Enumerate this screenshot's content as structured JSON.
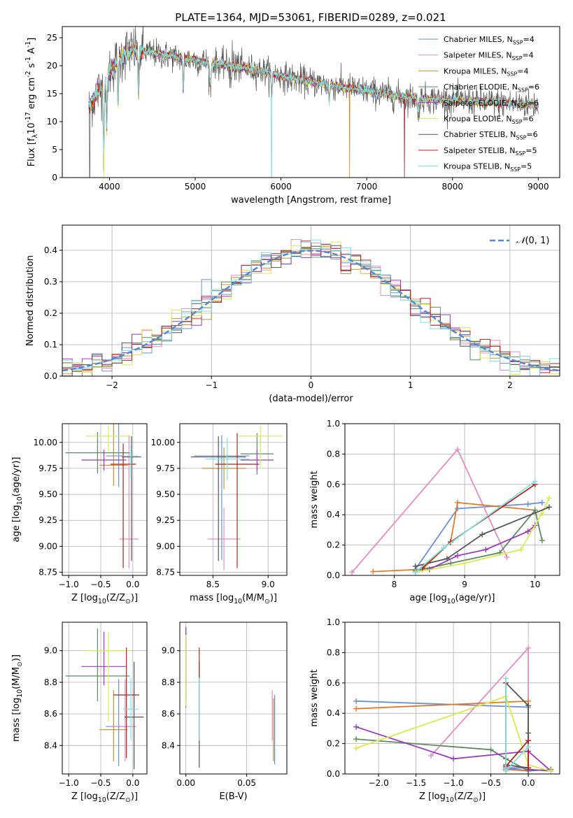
{
  "title": "PLATE=1364, MJD=53061, FIBERID=0289, z=0.021",
  "series": [
    {
      "name": "Chabrier MILES, N$_{SSP}$=4",
      "color": "#6b8fd8"
    },
    {
      "name": "Salpeter MILES, N$_{SSP}$=4",
      "color": "#e58dbd"
    },
    {
      "name": "Kroupa MILES, N$_{SSP}$=4",
      "color": "#c8902a"
    },
    {
      "name": "Chabrier ELODIE, N$_{SSP}$=6",
      "color": "#5e8a62"
    },
    {
      "name": "Salpeter ELODIE, N$_{SSP}$=6",
      "color": "#9a3bbd"
    },
    {
      "name": "Kroupa ELODIE, N$_{SSP}$=6",
      "color": "#d6ec4a"
    },
    {
      "name": "Chabrier STELIB, N$_{SSP}$=6",
      "color": "#555555"
    },
    {
      "name": "Salpeter STELIB, N$_{SSP}$=5",
      "color": "#b22222"
    },
    {
      "name": "Kroupa STELIB, N$_{SSP}$=5",
      "color": "#7fe0e0"
    }
  ],
  "extra_colors": {
    "orange": "#e07b2a"
  },
  "chart_data": [
    {
      "id": "spectrum",
      "type": "line",
      "xlabel": "wavelength [Angstrom, rest frame]",
      "ylabel": "Flux [f$_{\\lambda}$10$^{-17}$ erg cm$^{-2}$ s$^{-1}$ A$^{-1}$]",
      "xlim": [
        3450,
        9250
      ],
      "ylim": [
        0,
        27
      ],
      "xticks": [
        4000,
        5000,
        6000,
        7000,
        8000,
        9000
      ],
      "yticks": [
        0,
        5,
        10,
        15,
        20,
        25
      ],
      "continuum": {
        "x": [
          3760,
          3900,
          4000,
          4100,
          4200,
          4300,
          4400,
          4600,
          4800,
          5000,
          5200,
          5400,
          5600,
          5800,
          6000,
          6200,
          6400,
          6600,
          6800,
          7000,
          7200,
          7400,
          7600,
          7800,
          8000,
          8200,
          8400,
          8600,
          8800,
          9000
        ],
        "y": [
          13,
          16,
          19,
          21,
          22.5,
          22.8,
          22.5,
          22,
          21.5,
          21,
          20.5,
          20,
          19.5,
          19,
          18.2,
          17.5,
          17,
          16.5,
          16,
          15.5,
          15,
          14.5,
          14.2,
          14,
          13.8,
          13.6,
          13.5,
          13.3,
          13.2,
          13
        ]
      },
      "drops": [
        {
          "x": 3770,
          "series": "Chabrier STELIB, N$_{SSP}$=6"
        },
        {
          "x": 3935,
          "series": "Kroupa ELODIE, N$_{SSP}$=6"
        },
        {
          "x": 5890,
          "series": "Kroupa STELIB, N$_{SSP}$=5"
        },
        {
          "x": 6800,
          "series": "Kroupa MILES, N$_{SSP}$=4"
        },
        {
          "x": 7440,
          "series": "Salpeter STELIB, N$_{SSP}$=5"
        }
      ]
    },
    {
      "id": "residuals",
      "type": "histogram",
      "xlabel": "(data-model)/error",
      "ylabel": "Normed distribution",
      "xlim": [
        -2.5,
        2.5
      ],
      "ylim": [
        0,
        0.48
      ],
      "xticks": [
        -2,
        -1,
        0,
        1,
        2
      ],
      "yticks": [
        0.0,
        0.1,
        0.2,
        0.3,
        0.4
      ],
      "bin_width": 0.1,
      "reference": "$\\mathcal{N}(0, 1)$"
    },
    {
      "id": "age-vs-Z",
      "type": "scatter",
      "xlabel": "Z [log$_{10}$(Z/Z$_{\\odot}$)]",
      "ylabel": "age  [log$_{10}$(age/yr)]",
      "xlim": [
        -1.1,
        0.22
      ],
      "ylim": [
        8.72,
        10.18
      ],
      "xticks": [
        -1.0,
        -0.5,
        0.0
      ],
      "yticks": [
        8.75,
        9.0,
        9.25,
        9.5,
        9.75,
        10.0
      ],
      "points": [
        {
          "series": "Chabrier MILES, N$_{SSP}$=4",
          "x": -0.22,
          "y": 9.87,
          "xerr": 0.2,
          "yerr": [
            0.3,
            0.95
          ]
        },
        {
          "series": "Salpeter MILES, N$_{SSP}$=4",
          "x": -0.06,
          "y": 9.07,
          "xerr": 0.15,
          "yerr": [
            0.28,
            1.0
          ]
        },
        {
          "series": "Kroupa MILES, N$_{SSP}$=4",
          "x": -0.3,
          "y": 9.78,
          "xerr": 0.22,
          "yerr": [
            0.2,
            1.0
          ]
        },
        {
          "series": "Chabrier ELODIE, N$_{SSP}$=6",
          "x": -0.55,
          "y": 9.9,
          "xerr": 0.5,
          "yerr": [
            0.2,
            0.2
          ]
        },
        {
          "series": "Salpeter ELODIE, N$_{SSP}$=6",
          "x": -0.45,
          "y": 9.83,
          "xerr": 0.35,
          "yerr": [
            0.1,
            0.1
          ]
        },
        {
          "series": "Kroupa ELODIE, N$_{SSP}$=6",
          "x": -0.38,
          "y": 10.06,
          "xerr": 0.35,
          "yerr": [
            0.15,
            0.1
          ]
        },
        {
          "series": "Chabrier STELIB, N$_{SSP}$=6",
          "x": -0.02,
          "y": 9.86,
          "xerr": 0.15,
          "yerr": [
            1.0,
            0.2
          ]
        },
        {
          "series": "Salpeter STELIB, N$_{SSP}$=5",
          "x": -0.15,
          "y": 9.79,
          "xerr": 0.2,
          "yerr": [
            1.0,
            0.2
          ]
        },
        {
          "series": "Kroupa STELIB, N$_{SSP}$=5",
          "x": -0.03,
          "y": 9.87,
          "xerr": 0.12,
          "yerr": [
            0.2,
            0.1
          ]
        }
      ]
    },
    {
      "id": "age-vs-mass",
      "type": "scatter",
      "xlabel": "mass [log$_{10}$(M/M$_{\\odot}$)]",
      "ylabel": "",
      "xlim": [
        8.2,
        9.17
      ],
      "ylim": [
        8.72,
        10.18
      ],
      "xticks": [
        8.5,
        9.0
      ],
      "yticks": [
        8.75,
        9.0,
        9.25,
        9.5,
        9.75,
        10.0
      ],
      "points": [
        {
          "series": "Chabrier MILES, N$_{SSP}$=4",
          "x": 8.58,
          "y": 9.87,
          "xerr": 0.25,
          "yerr": [
            1.0,
            0.2
          ]
        },
        {
          "series": "Salpeter MILES, N$_{SSP}$=4",
          "x": 8.6,
          "y": 9.07,
          "xerr": 0.15,
          "yerr": [
            0.3,
            0.3
          ]
        },
        {
          "series": "Kroupa MILES, N$_{SSP}$=4",
          "x": 8.6,
          "y": 9.75,
          "xerr": 0.2,
          "yerr": [
            0.2,
            0.2
          ]
        },
        {
          "series": "Chabrier ELODIE, N$_{SSP}$=6",
          "x": 8.9,
          "y": 9.89,
          "xerr": 0.15,
          "yerr": [
            0.2,
            0.2
          ]
        },
        {
          "series": "Salpeter ELODIE, N$_{SSP}$=6",
          "x": 8.9,
          "y": 9.83,
          "xerr": 0.15,
          "yerr": [
            0.1,
            0.1
          ]
        },
        {
          "series": "Kroupa ELODIE, N$_{SSP}$=6",
          "x": 8.93,
          "y": 10.06,
          "xerr": 0.2,
          "yerr": [
            0.3,
            0.1
          ]
        },
        {
          "series": "Chabrier STELIB, N$_{SSP}$=6",
          "x": 8.55,
          "y": 9.86,
          "xerr": 0.25,
          "yerr": [
            1.0,
            0.2
          ]
        },
        {
          "series": "Salpeter STELIB, N$_{SSP}$=5",
          "x": 8.72,
          "y": 9.79,
          "xerr": 0.2,
          "yerr": [
            1.0,
            0.3
          ]
        },
        {
          "series": "Kroupa STELIB, N$_{SSP}$=5",
          "x": 8.63,
          "y": 9.84,
          "xerr": 0.2,
          "yerr": [
            0.2,
            0.2
          ]
        }
      ]
    },
    {
      "id": "weight-vs-age",
      "type": "line",
      "xlabel": "age  [log$_{10}$(age/yr)]",
      "ylabel": "mass weight",
      "xlim": [
        7.3,
        10.35
      ],
      "ylim": [
        0,
        1.0
      ],
      "xticks": [
        8,
        9,
        10
      ],
      "yticks": [
        0.0,
        0.2,
        0.4,
        0.6,
        0.8,
        1.0
      ],
      "lines": [
        {
          "series": "Chabrier MILES, N$_{SSP}$=4",
          "x": [
            8.3,
            8.9,
            9.9,
            10.1
          ],
          "y": [
            0.04,
            0.44,
            0.47,
            0.48
          ]
        },
        {
          "series": "Salpeter MILES, N$_{SSP}$=4",
          "x": [
            7.4,
            8.9,
            9.6
          ],
          "y": [
            0.02,
            0.83,
            0.12
          ]
        },
        {
          "series": "orange",
          "x": [
            7.7,
            8.4,
            8.8,
            8.9,
            10.0
          ],
          "y": [
            0.025,
            0.04,
            0.22,
            0.48,
            0.43
          ]
        },
        {
          "series": "Chabrier ELODIE, N$_{SSP}$=6",
          "x": [
            8.3,
            8.8,
            9.5,
            10.0,
            10.1
          ],
          "y": [
            0.03,
            0.08,
            0.15,
            0.43,
            0.23
          ]
        },
        {
          "series": "Salpeter ELODIE, N$_{SSP}$=6",
          "x": [
            8.5,
            8.9,
            9.3,
            9.9,
            10.0
          ],
          "y": [
            0.04,
            0.13,
            0.17,
            0.29,
            0.33
          ]
        },
        {
          "series": "Kroupa ELODIE, N$_{SSP}$=6",
          "x": [
            8.3,
            9.0,
            9.8,
            10.1,
            10.2
          ],
          "y": [
            0.02,
            0.08,
            0.17,
            0.41,
            0.51
          ]
        },
        {
          "series": "Chabrier STELIB, N$_{SSP}$=6",
          "x": [
            8.3,
            8.75,
            9.25,
            10.2
          ],
          "y": [
            0.06,
            0.11,
            0.27,
            0.45
          ]
        },
        {
          "series": "Salpeter STELIB, N$_{SSP}$=5",
          "x": [
            8.4,
            8.8,
            10.0
          ],
          "y": [
            0.05,
            0.22,
            0.6
          ]
        },
        {
          "series": "Kroupa STELIB, N$_{SSP}$=5",
          "x": [
            8.3,
            8.7,
            10.0
          ],
          "y": [
            0.02,
            0.18,
            0.62
          ]
        }
      ]
    },
    {
      "id": "mass-vs-Z",
      "type": "scatter",
      "xlabel": "Z [log$_{10}$(Z/Z$_{\\odot}$)]",
      "ylabel": "mass [log$_{10}$(M/M$_{\\odot}$)]",
      "xlim": [
        -1.1,
        0.22
      ],
      "ylim": [
        8.22,
        9.18
      ],
      "xticks": [
        -1.0,
        -0.5,
        0.0
      ],
      "yticks": [
        8.4,
        8.6,
        8.8,
        9.0
      ],
      "points": [
        {
          "series": "Chabrier MILES, N$_{SSP}$=4",
          "x": -0.22,
          "y": 8.52,
          "xerr": 0.2,
          "yerr": [
            0.25,
            0.3
          ]
        },
        {
          "series": "Salpeter MILES, N$_{SSP}$=4",
          "x": -0.12,
          "y": 8.52,
          "xerr": 0.18,
          "yerr": [
            0.22,
            0.3
          ]
        },
        {
          "series": "Kroupa MILES, N$_{SSP}$=4",
          "x": -0.3,
          "y": 8.5,
          "xerr": 0.22,
          "yerr": [
            0.2,
            0.25
          ]
        },
        {
          "series": "Chabrier ELODIE, N$_{SSP}$=6",
          "x": -0.55,
          "y": 8.84,
          "xerr": 0.5,
          "yerr": [
            0.16,
            0.3
          ]
        },
        {
          "series": "Salpeter ELODIE, N$_{SSP}$=6",
          "x": -0.45,
          "y": 8.9,
          "xerr": 0.35,
          "yerr": [
            0.12,
            0.22
          ]
        },
        {
          "series": "Kroupa ELODIE, N$_{SSP}$=6",
          "x": -0.38,
          "y": 9.0,
          "xerr": 0.35,
          "yerr": [
            0.45,
            0.12
          ]
        },
        {
          "series": "Chabrier STELIB, N$_{SSP}$=6",
          "x": 0.02,
          "y": 8.58,
          "xerr": 0.15,
          "yerr": [
            0.33,
            0.35
          ]
        },
        {
          "series": "Salpeter STELIB, N$_{SSP}$=5",
          "x": -0.1,
          "y": 8.72,
          "xerr": 0.2,
          "yerr": [
            0.4,
            0.3
          ]
        },
        {
          "series": "Kroupa STELIB, N$_{SSP}$=5",
          "x": -0.03,
          "y": 8.63,
          "xerr": 0.12,
          "yerr": [
            0.2,
            0.2
          ]
        }
      ]
    },
    {
      "id": "mass-vs-ebv",
      "type": "scatter",
      "xlabel": "E(B-V)",
      "ylabel": "",
      "xlim": [
        -0.005,
        0.083
      ],
      "ylim": [
        8.22,
        9.18
      ],
      "xticks": [
        0.0,
        0.05
      ],
      "yticks": [
        8.4,
        8.6,
        8.8,
        9.0
      ],
      "points": [
        {
          "series": "Chabrier MILES, N$_{SSP}$=4",
          "x": 0.073,
          "y": 8.5,
          "xerr": 0,
          "yerr": [
            0.22,
            0.22
          ]
        },
        {
          "series": "Salpeter MILES, N$_{SSP}$=4",
          "x": 0.071,
          "y": 8.6,
          "xerr": 0,
          "yerr": [
            0.17,
            0.15
          ]
        },
        {
          "series": "Kroupa MILES, N$_{SSP}$=4",
          "x": 0.072,
          "y": 8.5,
          "xerr": 0,
          "yerr": [
            0.2,
            0.2
          ]
        },
        {
          "series": "Chabrier ELODIE, N$_{SSP}$=6",
          "x": 0.0,
          "y": 8.84,
          "xerr": 0,
          "yerr": [
            0.2,
            0.3
          ]
        },
        {
          "series": "Salpeter ELODIE, N$_{SSP}$=6",
          "x": 0.0,
          "y": 8.9,
          "xerr": 0,
          "yerr": [
            0.2,
            0.25
          ]
        },
        {
          "series": "Kroupa ELODIE, N$_{SSP}$=6",
          "x": 0.0,
          "y": 8.8,
          "xerr": 0,
          "yerr": [
            0.15,
            0.3
          ]
        },
        {
          "series": "Chabrier STELIB, N$_{SSP}$=6",
          "x": 0.011,
          "y": 8.58,
          "xerr": 0,
          "yerr": [
            0.32,
            0.35
          ]
        },
        {
          "series": "Salpeter STELIB, N$_{SSP}$=5",
          "x": 0.011,
          "y": 8.72,
          "xerr": 0,
          "yerr": [
            0.3,
            0.3
          ]
        },
        {
          "series": "Kroupa STELIB, N$_{SSP}$=5",
          "x": 0.011,
          "y": 8.63,
          "xerr": 0,
          "yerr": [
            0.2,
            0.2
          ]
        }
      ]
    },
    {
      "id": "weight-vs-Z",
      "type": "line",
      "xlabel": "Z [log$_{10}$(Z/Z$_{\\odot}$)]",
      "ylabel": "mass weight",
      "xlim": [
        -2.45,
        0.42
      ],
      "ylim": [
        0,
        1.0
      ],
      "xticks": [
        -2.0,
        -1.5,
        -1.0,
        -0.5,
        0.0
      ],
      "yticks": [
        0.0,
        0.2,
        0.4,
        0.6,
        0.8,
        1.0
      ],
      "lines": [
        {
          "series": "Chabrier MILES, N$_{SSP}$=4",
          "x": [
            -2.3,
            0.0,
            0.0,
            -0.3,
            0.0
          ],
          "y": [
            0.48,
            0.44,
            0.04,
            0.04,
            0.02
          ]
        },
        {
          "series": "Salpeter MILES, N$_{SSP}$=4",
          "x": [
            -1.3,
            0.0,
            0.0,
            0.0
          ],
          "y": [
            0.12,
            0.83,
            0.02,
            0.04
          ]
        },
        {
          "series": "orange",
          "x": [
            -2.3,
            0.0,
            0.0,
            -0.3,
            0.0
          ],
          "y": [
            0.43,
            0.48,
            0.02,
            0.03,
            0.02
          ]
        },
        {
          "series": "Chabrier ELODIE, N$_{SSP}$=6",
          "x": [
            -2.3,
            -0.5,
            -0.3,
            0.0,
            0.3
          ],
          "y": [
            0.23,
            0.16,
            0.1,
            0.02,
            0.03
          ]
        },
        {
          "series": "Salpeter ELODIE, N$_{SSP}$=6",
          "x": [
            -2.3,
            -1.0,
            0.0,
            0.3,
            0.0
          ],
          "y": [
            0.31,
            0.1,
            0.15,
            0.02,
            0.03
          ]
        },
        {
          "series": "Kroupa ELODIE, N$_{SSP}$=6",
          "x": [
            -2.3,
            -0.3,
            0.0,
            0.3
          ],
          "y": [
            0.17,
            0.51,
            0.06,
            0.02
          ]
        },
        {
          "series": "Chabrier STELIB, N$_{SSP}$=6",
          "x": [
            -0.3,
            0.0,
            0.0,
            0.0,
            -0.3
          ],
          "y": [
            0.6,
            0.45,
            0.27,
            0.04,
            0.06
          ]
        },
        {
          "series": "Salpeter STELIB, N$_{SSP}$=5",
          "x": [
            -0.3,
            -0.3,
            0.0,
            0.0
          ],
          "y": [
            0.6,
            0.05,
            0.22,
            0.04
          ]
        },
        {
          "series": "Kroupa STELIB, N$_{SSP}$=5",
          "x": [
            -0.3,
            -0.3,
            0.0
          ],
          "y": [
            0.63,
            0.02,
            0.18
          ]
        }
      ]
    }
  ]
}
